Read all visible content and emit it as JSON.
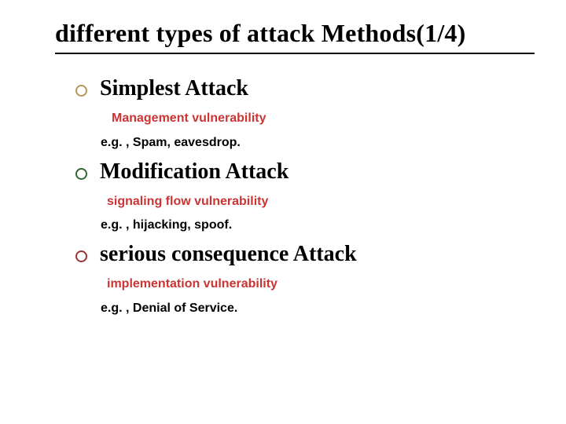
{
  "colors": {
    "black": "#000000",
    "white": "#ffffff",
    "red": "#cc3333",
    "bullet1": "#b39758",
    "bullet2": "#336633",
    "bullet3": "#993333"
  },
  "title": "different types of attack Methods(1/4)",
  "sections": [
    {
      "heading": "Simplest Attack",
      "sub_red": "Management vulnerability",
      "sub_black": "e.g. , Spam, eavesdrop."
    },
    {
      "heading": "Modification Attack",
      "sub_red": "signaling flow vulnerability",
      "sub_black": "e.g. , hijacking, spoof."
    },
    {
      "heading": "serious consequence Attack",
      "sub_red": "implementation vulnerability",
      "sub_black": "e.g. , Denial of Service."
    }
  ]
}
